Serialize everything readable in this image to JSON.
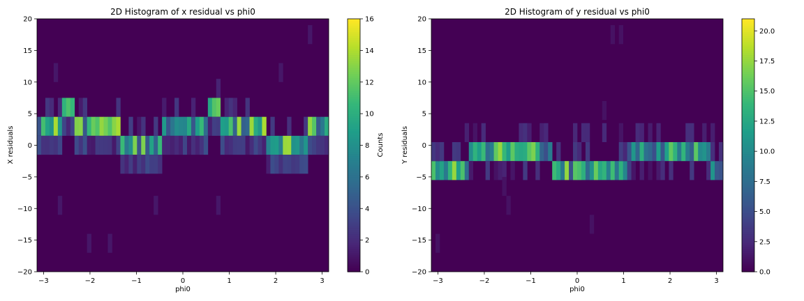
{
  "chart_data": [
    {
      "type": "heatmap",
      "title": "2D Histogram of x residual vs phi0",
      "xlabel": "phi0",
      "ylabel": "X residuals",
      "xlim": [
        -3.1416,
        3.1416
      ],
      "ylim": [
        -20,
        20
      ],
      "xticks": [
        "−3",
        "−2",
        "−1",
        "0",
        "1",
        "2",
        "3"
      ],
      "yticks": [
        "−20",
        "−15",
        "−10",
        "−5",
        "0",
        "5",
        "10",
        "15",
        "20"
      ],
      "bins": {
        "nx": 70,
        "ny": 13,
        "ybin_width": 3.0
      },
      "colorbar": {
        "label": "Counts",
        "min": 0,
        "max": 16,
        "ticks": [
          "0",
          "2",
          "4",
          "6",
          "8",
          "10",
          "12",
          "14",
          "16"
        ]
      },
      "colormap": "viridis",
      "band": {
        "description_values": [
          {
            "phi0": -3.0,
            "residual_center": 0.5,
            "peak_count": 9
          },
          {
            "phi0": -2.0,
            "residual_center": 3.0,
            "peak_count": 14
          },
          {
            "phi0": -1.0,
            "residual_center": 0.0,
            "peak_count": 10
          },
          {
            "phi0": 0.0,
            "residual_center": 0.5,
            "peak_count": 12
          },
          {
            "phi0": 0.8,
            "residual_center": 3.0,
            "peak_count": 16
          },
          {
            "phi0": 1.5,
            "residual_center": 3.0,
            "peak_count": 13
          },
          {
            "phi0": 2.2,
            "residual_center": 1.0,
            "peak_count": 14
          },
          {
            "phi0": 3.0,
            "residual_center": -0.5,
            "peak_count": 16
          }
        ]
      }
    },
    {
      "type": "heatmap",
      "title": "2D Histogram of y residual vs phi0",
      "xlabel": "phi0",
      "ylabel": "Y residuals",
      "xlim": [
        -3.1416,
        3.1416
      ],
      "ylim": [
        -20,
        20
      ],
      "xticks": [
        "−3",
        "−2",
        "−1",
        "0",
        "1",
        "2",
        "3"
      ],
      "yticks": [
        "−20",
        "−15",
        "−10",
        "−5",
        "0",
        "5",
        "10",
        "15",
        "20"
      ],
      "bins": {
        "nx": 70,
        "ny": 13,
        "ybin_width": 3.0
      },
      "colorbar": {
        "label": "",
        "min": 0,
        "max": 21,
        "ticks": [
          "0.0",
          "2.5",
          "5.0",
          "7.5",
          "10.0",
          "12.5",
          "15.0",
          "17.5",
          "20.0"
        ]
      },
      "colormap": "viridis",
      "band": {
        "description_values": [
          {
            "phi0": -3.0,
            "residual_center": -4.0,
            "peak_count": 14
          },
          {
            "phi0": -2.6,
            "residual_center": -4.0,
            "peak_count": 21
          },
          {
            "phi0": -1.5,
            "residual_center": -0.5,
            "peak_count": 15
          },
          {
            "phi0": -0.6,
            "residual_center": -0.5,
            "peak_count": 18
          },
          {
            "phi0": 0.1,
            "residual_center": -4.0,
            "peak_count": 19
          },
          {
            "phi0": 0.8,
            "residual_center": -4.0,
            "peak_count": 20
          },
          {
            "phi0": 1.5,
            "residual_center": -0.5,
            "peak_count": 19
          },
          {
            "phi0": 2.5,
            "residual_center": -0.5,
            "peak_count": 21
          },
          {
            "phi0": 3.1,
            "residual_center": -4.0,
            "peak_count": 20
          }
        ]
      }
    }
  ]
}
